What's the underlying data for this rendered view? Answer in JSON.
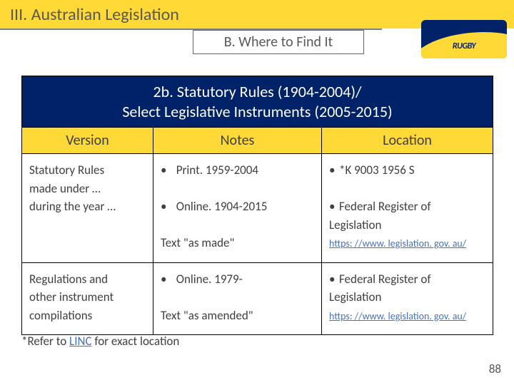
{
  "header": {
    "title": "III. Australian Legislation",
    "subtitle": "B. Where to Find It"
  },
  "logo": {
    "text": "RUGBY"
  },
  "table": {
    "heading_line1": "2b. Statutory Rules (1904-2004)/",
    "heading_line2": "Select Legislative Instruments (2005-2015)",
    "col_headers": {
      "c1": "Version",
      "c2": "Notes",
      "c3": "Location"
    },
    "rows": [
      {
        "version_l1": "Statutory Rules",
        "version_l2": "made under …",
        "version_l3": "during the year …",
        "notes_b1": "Print. 1959-2004",
        "notes_b2": "Online. 1904-2015",
        "notes_footer": "Text \"as made\"",
        "loc_b1": "*K 9003 1956 S",
        "loc_b2": "Federal Register of Legislation",
        "loc_link": "https: //www. legislation. gov. au/"
      },
      {
        "version_l1": "Regulations and",
        "version_l2": "other instrument",
        "version_l3": "compilations",
        "notes_b1": "Online. 1979-",
        "notes_footer": "Text \"as amended\"",
        "loc_b2": "Federal Register of Legislation",
        "loc_link": "https: //www. legislation. gov. au/"
      }
    ]
  },
  "footnote": {
    "prefix": "*Refer to ",
    "link": "LINC",
    "suffix": " for exact location"
  },
  "pagenum": "88",
  "colors": {
    "yellow": "#ffd936",
    "navy": "#002269",
    "gray_text": "#595959",
    "body_text": "#404040",
    "link": "#4472c4"
  }
}
